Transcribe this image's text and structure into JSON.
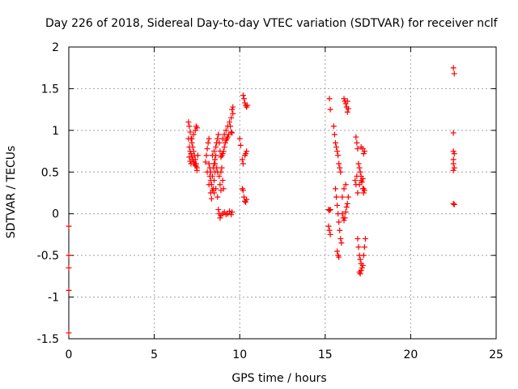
{
  "chart_data": {
    "type": "scatter",
    "title": "Day 226 of 2018, Sidereal Day-to-day VTEC variation (SDTVAR) for receiver nclf",
    "xlabel": "GPS time / hours",
    "ylabel": "SDTVAR / TECUs",
    "xlim": [
      0,
      25
    ],
    "ylim": [
      -1.5,
      2
    ],
    "xticks": [
      0,
      5,
      10,
      15,
      20,
      25
    ],
    "yticks": [
      -1.5,
      -1,
      -0.5,
      0,
      0.5,
      1,
      1.5,
      2
    ],
    "xtick_labels": [
      "0",
      "5",
      "10",
      "15",
      "20",
      "25"
    ],
    "ytick_labels": [
      "-1.5",
      "-1",
      "-0.5",
      "0",
      "0.5",
      "1",
      "1.5",
      "2"
    ],
    "grid": true,
    "marker": "+",
    "color": "#ff0000",
    "series": [
      {
        "name": "SDTVAR",
        "points": [
          [
            0.0,
            -0.15
          ],
          [
            0.0,
            -0.5
          ],
          [
            0.0,
            -0.65
          ],
          [
            0.0,
            -0.92
          ],
          [
            0.0,
            -1.43
          ],
          [
            7.0,
            1.1
          ],
          [
            7.05,
            1.05
          ],
          [
            7.1,
            0.98
          ],
          [
            7.15,
            0.9
          ],
          [
            7.2,
            0.85
          ],
          [
            7.25,
            0.8
          ],
          [
            7.3,
            0.75
          ],
          [
            7.35,
            0.7
          ],
          [
            7.4,
            0.65
          ],
          [
            7.45,
            0.6
          ],
          [
            7.5,
            0.55
          ],
          [
            7.0,
            0.9
          ],
          [
            7.05,
            0.8
          ],
          [
            7.1,
            0.75
          ],
          [
            7.15,
            0.72
          ],
          [
            7.2,
            0.68
          ],
          [
            7.25,
            0.65
          ],
          [
            7.3,
            0.62
          ],
          [
            7.35,
            0.6
          ],
          [
            7.4,
            0.58
          ],
          [
            7.45,
            0.57
          ],
          [
            7.5,
            0.52
          ],
          [
            7.05,
            0.68
          ],
          [
            7.1,
            0.63
          ],
          [
            7.15,
            0.6
          ],
          [
            7.2,
            0.9
          ],
          [
            7.3,
            0.95
          ],
          [
            7.4,
            1.0
          ],
          [
            7.45,
            1.05
          ],
          [
            7.5,
            1.03
          ],
          [
            7.55,
            0.7
          ],
          [
            8.0,
            0.62
          ],
          [
            8.05,
            0.7
          ],
          [
            8.1,
            0.78
          ],
          [
            8.15,
            0.85
          ],
          [
            8.2,
            0.9
          ],
          [
            8.25,
            0.45
          ],
          [
            8.3,
            0.4
          ],
          [
            8.35,
            0.35
          ],
          [
            8.4,
            0.45
          ],
          [
            8.45,
            0.55
          ],
          [
            8.5,
            0.6
          ],
          [
            8.55,
            0.65
          ],
          [
            8.6,
            0.7
          ],
          [
            8.1,
            0.5
          ],
          [
            8.2,
            0.35
          ],
          [
            8.3,
            0.25
          ],
          [
            8.35,
            0.18
          ],
          [
            8.4,
            0.28
          ],
          [
            8.45,
            0.3
          ],
          [
            8.5,
            0.4
          ],
          [
            8.55,
            0.5
          ],
          [
            8.6,
            0.8
          ],
          [
            8.65,
            0.85
          ],
          [
            8.7,
            0.9
          ],
          [
            8.75,
            0.95
          ],
          [
            8.8,
            0.85
          ],
          [
            8.85,
            0.75
          ],
          [
            8.9,
            0.68
          ],
          [
            8.95,
            0.7
          ],
          [
            9.0,
            0.72
          ],
          [
            9.05,
            0.75
          ],
          [
            9.1,
            0.8
          ],
          [
            9.15,
            0.85
          ],
          [
            9.2,
            0.88
          ],
          [
            9.25,
            0.9
          ],
          [
            9.3,
            0.92
          ],
          [
            9.35,
            0.95
          ],
          [
            9.0,
            0.9
          ],
          [
            9.1,
            0.95
          ],
          [
            9.2,
            1.0
          ],
          [
            9.3,
            1.05
          ],
          [
            9.4,
            1.1
          ],
          [
            9.5,
            1.15
          ],
          [
            9.6,
            1.2
          ],
          [
            9.55,
            1.25
          ],
          [
            9.6,
            1.28
          ],
          [
            9.45,
            1.05
          ],
          [
            9.5,
            0.98
          ],
          [
            9.55,
            0.97
          ],
          [
            8.5,
            0.25
          ],
          [
            8.6,
            0.3
          ],
          [
            8.7,
            0.2
          ],
          [
            8.75,
            0.05
          ],
          [
            8.8,
            0.0
          ],
          [
            8.85,
            -0.05
          ],
          [
            8.9,
            -0.02
          ],
          [
            9.0,
            0.0
          ],
          [
            9.1,
            0.02
          ],
          [
            9.2,
            -0.01
          ],
          [
            9.3,
            0.0
          ],
          [
            9.4,
            0.03
          ],
          [
            9.5,
            -0.01
          ],
          [
            9.55,
            0.02
          ],
          [
            8.4,
            0.7
          ],
          [
            8.5,
            0.75
          ],
          [
            8.55,
            0.6
          ],
          [
            8.65,
            0.55
          ],
          [
            8.7,
            0.5
          ],
          [
            8.8,
            0.45
          ],
          [
            8.9,
            0.5
          ],
          [
            8.95,
            0.55
          ],
          [
            8.2,
            0.6
          ],
          [
            8.25,
            0.55
          ],
          [
            8.3,
            0.5
          ],
          [
            8.9,
            0.28
          ],
          [
            8.85,
            0.35
          ],
          [
            9.0,
            0.4
          ],
          [
            9.05,
            0.3
          ],
          [
            10.0,
            0.9
          ],
          [
            10.05,
            0.82
          ],
          [
            10.15,
            0.65
          ],
          [
            10.2,
            0.6
          ],
          [
            10.3,
            0.7
          ],
          [
            10.35,
            0.72
          ],
          [
            10.4,
            0.75
          ],
          [
            10.2,
            1.42
          ],
          [
            10.25,
            1.38
          ],
          [
            10.3,
            1.33
          ],
          [
            10.35,
            1.3
          ],
          [
            10.4,
            1.28
          ],
          [
            10.45,
            1.3
          ],
          [
            10.15,
            0.3
          ],
          [
            10.2,
            0.28
          ],
          [
            10.25,
            0.2
          ],
          [
            10.3,
            0.15
          ],
          [
            10.35,
            0.14
          ],
          [
            10.4,
            0.17
          ],
          [
            15.25,
            1.38
          ],
          [
            15.3,
            1.25
          ],
          [
            15.2,
            0.05
          ],
          [
            15.25,
            0.04
          ],
          [
            15.3,
            0.05
          ],
          [
            15.2,
            -0.15
          ],
          [
            15.25,
            -0.2
          ],
          [
            15.3,
            -0.25
          ],
          [
            15.5,
            1.05
          ],
          [
            15.55,
            0.95
          ],
          [
            15.6,
            0.85
          ],
          [
            15.65,
            0.8
          ],
          [
            15.7,
            0.75
          ],
          [
            15.75,
            0.7
          ],
          [
            15.8,
            0.6
          ],
          [
            15.85,
            0.55
          ],
          [
            15.9,
            0.5
          ],
          [
            15.6,
            0.3
          ],
          [
            15.65,
            0.2
          ],
          [
            15.7,
            0.1
          ],
          [
            15.75,
            0.0
          ],
          [
            15.8,
            -0.1
          ],
          [
            15.85,
            -0.2
          ],
          [
            15.9,
            -0.3
          ],
          [
            15.95,
            -0.35
          ],
          [
            15.7,
            -0.45
          ],
          [
            15.75,
            -0.5
          ],
          [
            15.8,
            -0.52
          ],
          [
            16.0,
            0.0
          ],
          [
            16.05,
            -0.05
          ],
          [
            16.1,
            -0.08
          ],
          [
            16.15,
            -0.05
          ],
          [
            16.2,
            0.02
          ],
          [
            16.25,
            0.08
          ],
          [
            16.3,
            0.12
          ],
          [
            16.35,
            0.2
          ],
          [
            16.0,
            0.2
          ],
          [
            16.1,
            0.3
          ],
          [
            16.2,
            0.35
          ],
          [
            16.1,
            1.38
          ],
          [
            16.15,
            1.35
          ],
          [
            16.2,
            1.32
          ],
          [
            16.25,
            1.28
          ],
          [
            16.3,
            1.22
          ],
          [
            16.35,
            1.26
          ],
          [
            16.3,
            1.35
          ],
          [
            16.8,
            0.92
          ],
          [
            16.85,
            0.85
          ],
          [
            16.9,
            0.78
          ],
          [
            16.95,
            0.6
          ],
          [
            17.0,
            0.55
          ],
          [
            17.05,
            0.5
          ],
          [
            17.1,
            0.45
          ],
          [
            17.15,
            0.38
          ],
          [
            17.2,
            0.3
          ],
          [
            17.25,
            0.25
          ],
          [
            16.9,
            -0.3
          ],
          [
            16.95,
            -0.4
          ],
          [
            17.0,
            -0.5
          ],
          [
            17.05,
            -0.55
          ],
          [
            17.1,
            -0.6
          ],
          [
            17.15,
            -0.65
          ],
          [
            17.2,
            -0.62
          ],
          [
            17.25,
            -0.5
          ],
          [
            17.3,
            -0.4
          ],
          [
            17.35,
            -0.3
          ],
          [
            17.0,
            -0.7
          ],
          [
            17.05,
            -0.72
          ],
          [
            17.1,
            -0.68
          ],
          [
            16.75,
            0.4
          ],
          [
            16.8,
            0.35
          ],
          [
            16.85,
            0.45
          ],
          [
            16.9,
            0.25
          ],
          [
            17.0,
            0.35
          ],
          [
            17.1,
            0.4
          ],
          [
            17.2,
            0.42
          ],
          [
            17.25,
            0.3
          ],
          [
            17.3,
            0.28
          ],
          [
            17.1,
            0.8
          ],
          [
            17.2,
            0.78
          ],
          [
            17.3,
            0.75
          ],
          [
            17.25,
            0.72
          ],
          [
            22.5,
            1.75
          ],
          [
            22.55,
            1.68
          ],
          [
            22.5,
            0.97
          ],
          [
            22.5,
            0.75
          ],
          [
            22.55,
            0.72
          ],
          [
            22.5,
            0.65
          ],
          [
            22.5,
            0.6
          ],
          [
            22.55,
            0.55
          ],
          [
            22.5,
            0.52
          ],
          [
            22.5,
            0.12
          ],
          [
            22.55,
            0.11
          ]
        ]
      }
    ]
  }
}
